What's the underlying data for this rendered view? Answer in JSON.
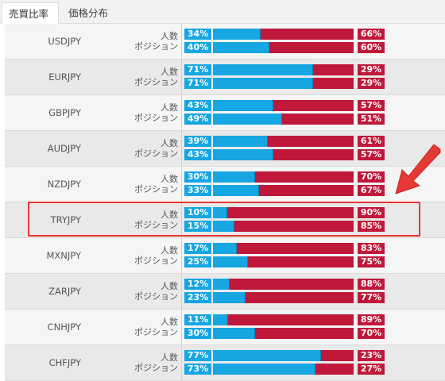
{
  "tabs": [
    {
      "label": "売買比率",
      "active": true
    },
    {
      "label": "価格分布",
      "active": false
    }
  ],
  "labels": {
    "people": "人数",
    "position": "ポジション"
  },
  "colors": {
    "buy": "#16a6e2",
    "sell": "#c0183a",
    "highlight": "#e53935"
  },
  "rows": [
    {
      "pair": "USDJPY",
      "people": {
        "buy": 34,
        "sell": 66
      },
      "position": {
        "buy": 40,
        "sell": 60
      }
    },
    {
      "pair": "EURJPY",
      "people": {
        "buy": 71,
        "sell": 29
      },
      "position": {
        "buy": 71,
        "sell": 29
      }
    },
    {
      "pair": "GBPJPY",
      "people": {
        "buy": 43,
        "sell": 57
      },
      "position": {
        "buy": 49,
        "sell": 51
      }
    },
    {
      "pair": "AUDJPY",
      "people": {
        "buy": 39,
        "sell": 61
      },
      "position": {
        "buy": 43,
        "sell": 57
      }
    },
    {
      "pair": "NZDJPY",
      "people": {
        "buy": 30,
        "sell": 70
      },
      "position": {
        "buy": 33,
        "sell": 67
      }
    },
    {
      "pair": "TRYJPY",
      "people": {
        "buy": 10,
        "sell": 90
      },
      "position": {
        "buy": 15,
        "sell": 85
      },
      "highlighted": true
    },
    {
      "pair": "MXNJPY",
      "people": {
        "buy": 17,
        "sell": 83
      },
      "position": {
        "buy": 25,
        "sell": 75
      }
    },
    {
      "pair": "ZARJPY",
      "people": {
        "buy": 12,
        "sell": 88
      },
      "position": {
        "buy": 23,
        "sell": 77
      }
    },
    {
      "pair": "CNHJPY",
      "people": {
        "buy": 11,
        "sell": 89
      },
      "position": {
        "buy": 30,
        "sell": 70
      }
    },
    {
      "pair": "CHFJPY",
      "people": {
        "buy": 77,
        "sell": 23
      },
      "position": {
        "buy": 73,
        "sell": 27
      }
    }
  ]
}
